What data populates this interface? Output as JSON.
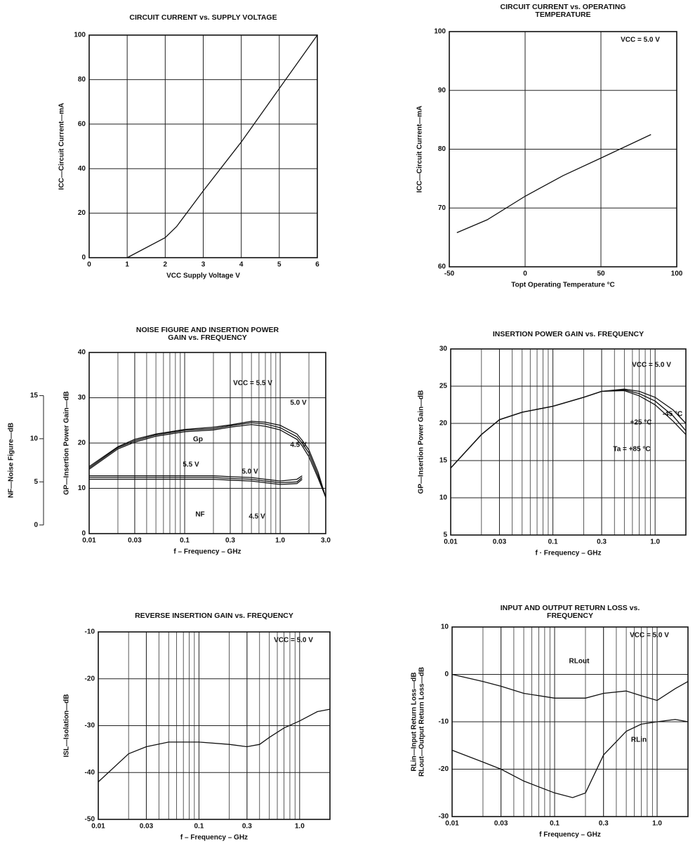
{
  "chart_data": [
    {
      "type": "line",
      "title": "CIRCUIT CURRENT vs. SUPPLY VOLTAGE",
      "x_label": "VCC  Supply Voltage  V",
      "y_label": "ICC—Circuit Current—mA",
      "x": [
        1,
        2,
        2.3,
        3,
        4,
        5,
        6
      ],
      "series": [
        {
          "color": "#111111",
          "values": [
            0,
            9,
            14,
            30,
            52,
            76,
            100
          ]
        }
      ],
      "xlim": [
        0,
        6
      ],
      "xticks": [
        0,
        1,
        2,
        3,
        4,
        5,
        6
      ],
      "ylim": [
        0,
        100
      ],
      "yticks": [
        0,
        20,
        40,
        60,
        80,
        100
      ],
      "grid": true,
      "log_x": false
    },
    {
      "type": "line",
      "title": [
        "CIRCUIT CURRENT vs. OPERATING",
        "TEMPERATURE"
      ],
      "x_label": "Topt  Operating Temperature  °C",
      "y_label": "ICC—Circuit Current—mA",
      "annotations": [
        "VCC = 5.0 V"
      ],
      "x": [
        -45,
        -25,
        0,
        25,
        50,
        83
      ],
      "series": [
        {
          "color": "#111111",
          "values": [
            65.8,
            68,
            72,
            75.5,
            78.5,
            82.5
          ]
        }
      ],
      "xlim": [
        -50,
        100
      ],
      "xticks": [
        -50,
        0,
        50,
        100
      ],
      "ylim": [
        60,
        100
      ],
      "yticks": [
        60,
        70,
        80,
        90,
        100
      ],
      "grid": true,
      "log_x": false
    },
    {
      "type": "line",
      "title": [
        "NOISE FIGURE AND INSERTION POWER",
        "GAIN vs. FREQUENCY"
      ],
      "x_label": "f – Frequency – GHz",
      "y_label": "GP—Insertion Power Gain—dB",
      "y2_label": "NF—Noise Figure—dB",
      "annotations": [
        "Gp",
        "NF"
      ],
      "x": [
        0.01,
        0.02,
        0.03,
        0.05,
        0.1,
        0.2,
        0.3,
        0.5,
        0.7,
        1.0,
        1.5,
        1.7,
        2.0,
        2.5,
        3.0
      ],
      "series": [
        {
          "name": "VCC = 5.5 V",
          "color": "#111111",
          "values": [
            14.8,
            19.2,
            20.8,
            22,
            23,
            23.5,
            24,
            24.8,
            24.6,
            23.9,
            22,
            20.6,
            18.5,
            13.5,
            8
          ]
        },
        {
          "name": "5.0 V",
          "color": "#111111",
          "values": [
            14.5,
            19,
            20.5,
            21.8,
            22.8,
            23.2,
            23.8,
            24.5,
            24.2,
            23.4,
            21.4,
            20,
            17.8,
            12.8,
            8
          ]
        },
        {
          "name": "4.5 V",
          "color": "#111111",
          "values": [
            14.2,
            18.7,
            20.2,
            21.5,
            22.5,
            22.9,
            23.5,
            24.1,
            23.7,
            22.9,
            20.8,
            19.4,
            17,
            12.2,
            8
          ]
        },
        {
          "name": "5.5 V",
          "color": "#111111",
          "axis": "y2",
          "values": [
            5.7,
            5.7,
            5.7,
            5.7,
            5.7,
            5.7,
            5.6,
            5.5,
            5.3,
            5.1,
            5.3,
            5.7,
            null,
            null,
            null
          ]
        },
        {
          "name": "5.0 V",
          "color": "#111111",
          "axis": "y2",
          "values": [
            5.5,
            5.5,
            5.5,
            5.5,
            5.5,
            5.5,
            5.4,
            5.3,
            5.1,
            4.9,
            5.0,
            5.5,
            null,
            null,
            null
          ]
        },
        {
          "name": "4.5 V",
          "color": "#111111",
          "axis": "y2",
          "values": [
            5.3,
            5.3,
            5.3,
            5.3,
            5.3,
            5.3,
            5.2,
            5.1,
            4.9,
            4.7,
            4.8,
            5.3,
            null,
            null,
            null
          ]
        }
      ],
      "xlim": [
        0.01,
        3.0
      ],
      "xticks": [
        0.01,
        0.03,
        0.1,
        0.3,
        {
          "value": 1.0,
          "label": "1.0"
        },
        {
          "value": 3.0,
          "label": "3.0"
        }
      ],
      "ylim": [
        0,
        40
      ],
      "yticks": [
        0,
        10,
        20,
        30,
        40
      ],
      "y2lim": [
        -1,
        20
      ],
      "y2ticks": [
        0,
        5,
        10,
        15
      ],
      "grid": true,
      "log_x": true
    },
    {
      "type": "line",
      "title": "INSERTION POWER GAIN vs. FREQUENCY",
      "x_label": "f · Frequency – GHz",
      "y_label": "GP—Insertion Power Gain—dB",
      "annotations": [
        "VCC = 5.0 V"
      ],
      "x": [
        0.01,
        0.02,
        0.03,
        0.05,
        0.1,
        0.2,
        0.3,
        0.5,
        0.7,
        1.0,
        1.5,
        2.0
      ],
      "series": [
        {
          "name": "-45 °C",
          "color": "#111111",
          "values": [
            14,
            18.5,
            20.5,
            21.5,
            22.3,
            23.5,
            24.3,
            24.6,
            24.3,
            23.5,
            21.8,
            20
          ]
        },
        {
          "name": "+25 °C",
          "color": "#111111",
          "values": [
            14,
            18.5,
            20.5,
            21.5,
            22.3,
            23.5,
            24.3,
            24.5,
            24,
            23,
            21,
            19
          ]
        },
        {
          "name": "Ta = +85 °C",
          "color": "#111111",
          "values": [
            14,
            18.5,
            20.5,
            21.5,
            22.3,
            23.5,
            24.3,
            24.4,
            23.7,
            22.5,
            20.3,
            18.5
          ]
        }
      ],
      "xlim": [
        0.01,
        2.0
      ],
      "xticks": [
        0.01,
        0.03,
        0.1,
        0.3,
        {
          "value": 1.0,
          "label": "1.0"
        }
      ],
      "ylim": [
        5,
        30
      ],
      "yticks": [
        5,
        10,
        15,
        20,
        25,
        30
      ],
      "grid": true,
      "log_x": true
    },
    {
      "type": "line",
      "title": "REVERSE INSERTION GAIN vs. FREQUENCY",
      "x_label": "f – Frequency – GHz",
      "y_label": "ISL—Isolation—dB",
      "annotations": [
        "VCC = 5.0 V"
      ],
      "x": [
        0.01,
        0.02,
        0.03,
        0.05,
        0.1,
        0.2,
        0.3,
        0.4,
        0.5,
        0.7,
        1.0,
        1.5,
        2.0
      ],
      "series": [
        {
          "color": "#111111",
          "values": [
            -42,
            -36,
            -34.5,
            -33.5,
            -33.5,
            -34,
            -34.5,
            -34,
            -32.5,
            -30.5,
            -29,
            -27,
            -26.5
          ]
        }
      ],
      "xlim": [
        0.01,
        2.0
      ],
      "xticks": [
        0.01,
        0.03,
        0.1,
        0.3,
        {
          "value": 1.0,
          "label": "1.0"
        }
      ],
      "ylim": [
        -50,
        -10
      ],
      "yticks": [
        -50,
        -40,
        -30,
        -20,
        -10
      ],
      "grid": true,
      "log_x": true
    },
    {
      "type": "line",
      "title": [
        "INPUT AND OUTPUT RETURN LOSS vs.",
        "FREQUENCY"
      ],
      "x_label": "f  Frequency – GHz",
      "y_label": [
        "RLin—Input Return Loss—dB",
        "RLout—Output Return Loss—dB"
      ],
      "annotations": [
        "VCC = 5.0 V"
      ],
      "x": [
        0.01,
        0.02,
        0.03,
        0.05,
        0.1,
        0.15,
        0.2,
        0.3,
        0.5,
        0.7,
        1.0,
        1.5,
        2.0
      ],
      "series": [
        {
          "name": "RLout",
          "color": "#111111",
          "values": [
            0,
            -1.5,
            -2.5,
            -4,
            -5,
            -5,
            -5,
            -4,
            -3.5,
            -4.5,
            -5.5,
            -3,
            -1.5
          ]
        },
        {
          "name": "RLin",
          "color": "#111111",
          "values": [
            -16,
            -18.5,
            -20,
            -22.5,
            -25,
            -26,
            -25,
            -17,
            -12,
            -10.5,
            -10,
            -9.5,
            -10
          ]
        }
      ],
      "xlim": [
        0.01,
        2.0
      ],
      "xticks": [
        0.01,
        0.03,
        0.1,
        0.3,
        {
          "value": 1.0,
          "label": "1.0"
        }
      ],
      "ylim": [
        -30,
        10
      ],
      "yticks": [
        -30,
        -20,
        -10,
        0,
        10
      ],
      "grid": true,
      "log_x": true
    }
  ]
}
